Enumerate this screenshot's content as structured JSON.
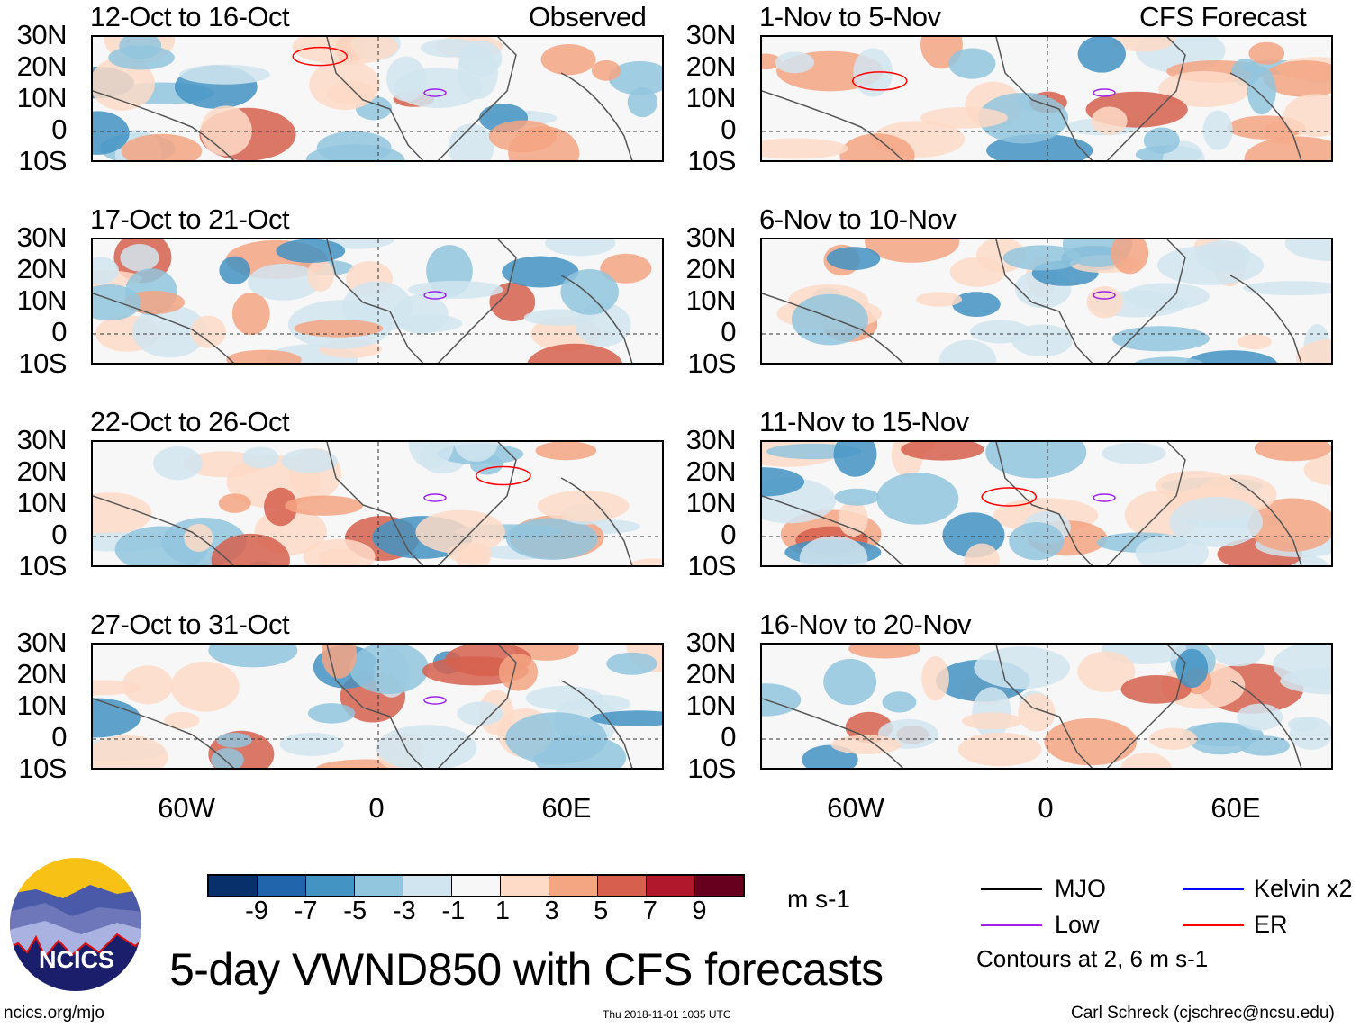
{
  "figure": {
    "title": "5-day VWND850 with CFS forecasts",
    "left_header": "Observed",
    "right_header": "CFS Forecast",
    "lat_labels": [
      "30N",
      "20N",
      "10N",
      "0",
      "10S"
    ],
    "lon_labels": [
      "60W",
      "0",
      "60E"
    ],
    "panels_left": [
      {
        "title": "12-Oct to 16-Oct"
      },
      {
        "title": "17-Oct to 21-Oct"
      },
      {
        "title": "22-Oct to 26-Oct"
      },
      {
        "title": "27-Oct to 31-Oct"
      }
    ],
    "panels_right": [
      {
        "title": "1-Nov to 5-Nov"
      },
      {
        "title": "6-Nov to 10-Nov"
      },
      {
        "title": "11-Nov to 15-Nov"
      },
      {
        "title": "16-Nov to 20-Nov"
      }
    ]
  },
  "colorbar": {
    "units": "m s-1",
    "ticks": [
      "-9",
      "-7",
      "-5",
      "-3",
      "-1",
      "1",
      "3",
      "5",
      "7",
      "9"
    ],
    "colors": [
      "#08306b",
      "#2166ac",
      "#4393c3",
      "#92c5de",
      "#d1e5f0",
      "#f7f7f7",
      "#fddbc7",
      "#f4a582",
      "#d6604d",
      "#b2182b",
      "#67001f"
    ]
  },
  "legend": {
    "items": [
      {
        "label": "MJO",
        "color": "#000000"
      },
      {
        "label": "Kelvin x2",
        "color": "#0000ff"
      },
      {
        "label": "Low",
        "color": "#a020f0"
      },
      {
        "label": "ER",
        "color": "#ff0000"
      }
    ],
    "contours_note": "Contours at 2, 6 m s-1"
  },
  "logo": {
    "text": "NCICS"
  },
  "footer": {
    "url": "ncics.org/mjo",
    "timestamp": "Thu 2018-11-01 1035 UTC",
    "credit": "Carl Schreck (cjschrec@ncsu.edu)"
  }
}
